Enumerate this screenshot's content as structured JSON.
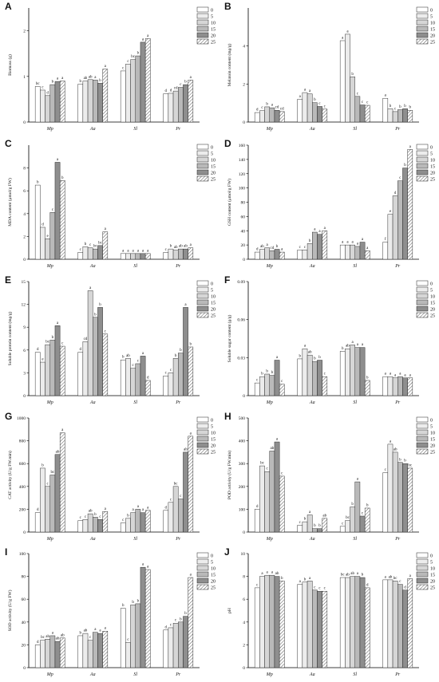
{
  "legend_levels": [
    "0",
    "5",
    "10",
    "15",
    "20",
    "25"
  ],
  "series_fills": [
    "#ffffff",
    "#ececec",
    "#d6d6d6",
    "#b9b9b9",
    "#8e8e8e",
    "hatch"
  ],
  "chart_data": [
    {
      "label": "A",
      "type": "bar",
      "ylabel": "Biomass (g)",
      "ylim": [
        0,
        2.5
      ],
      "yticks": [
        0,
        1,
        2
      ],
      "categories": [
        "Mp",
        "Aa",
        "Sl",
        "Pr"
      ],
      "series": [
        {
          "name": "0",
          "values": [
            0.78,
            0.83,
            1.12,
            0.62
          ],
          "sig": [
            "bc",
            "b",
            "c",
            "d"
          ]
        },
        {
          "name": "5",
          "values": [
            0.7,
            0.9,
            1.27,
            0.63
          ],
          "sig": [
            "c",
            "ab",
            "c",
            "d"
          ]
        },
        {
          "name": "10",
          "values": [
            0.58,
            0.93,
            1.37,
            0.68
          ],
          "sig": [
            "d",
            "ab",
            "bc",
            "cd"
          ]
        },
        {
          "name": "15",
          "values": [
            0.82,
            0.92,
            1.45,
            0.76
          ],
          "sig": [
            "b",
            "a",
            "b",
            "c"
          ]
        },
        {
          "name": "20",
          "values": [
            0.89,
            0.85,
            1.75,
            0.82
          ],
          "sig": [
            "a",
            "b",
            "a",
            "b"
          ]
        },
        {
          "name": "25",
          "values": [
            0.9,
            1.16,
            1.83,
            0.92
          ],
          "sig": [
            "a",
            "a",
            "a",
            "a"
          ]
        }
      ]
    },
    {
      "label": "B",
      "type": "bar",
      "ylabel": "Melatoin content (mg/g)",
      "ylim": [
        0,
        6
      ],
      "yticks": [
        0,
        2,
        4
      ],
      "categories": [
        "Mp",
        "Aa",
        "Sl",
        "Pr"
      ],
      "series": [
        {
          "name": "0",
          "values": [
            0.5,
            1.2,
            4.28,
            1.25
          ],
          "sig": [
            "d",
            "a",
            "a",
            "a"
          ]
        },
        {
          "name": "5",
          "values": [
            0.6,
            1.55,
            4.62,
            0.7
          ],
          "sig": [
            "c",
            "a",
            "a",
            "b"
          ]
        },
        {
          "name": "10",
          "values": [
            0.8,
            1.48,
            2.38,
            0.55
          ],
          "sig": [
            "b",
            "a",
            "b",
            "c"
          ]
        },
        {
          "name": "15",
          "values": [
            0.75,
            1.02,
            1.35,
            0.65
          ],
          "sig": [
            "a",
            "b",
            "c",
            "b"
          ]
        },
        {
          "name": "20",
          "values": [
            0.62,
            0.82,
            0.9,
            0.7
          ],
          "sig": [
            "cd",
            "c",
            "c",
            "b"
          ]
        },
        {
          "name": "25",
          "values": [
            0.55,
            0.68,
            0.88,
            0.62
          ],
          "sig": [
            "cd",
            "c",
            "c",
            "b"
          ]
        }
      ]
    },
    {
      "label": "C",
      "type": "bar",
      "ylabel": "MDA content (μmol/g FW)",
      "ylim": [
        0,
        10
      ],
      "yticks": [
        0,
        2,
        4,
        6,
        8
      ],
      "categories": [
        "Mp",
        "Aa",
        "Sl",
        "Pr"
      ],
      "series": [
        {
          "name": "0",
          "values": [
            6.5,
            0.6,
            0.5,
            0.6
          ],
          "sig": [
            "b",
            "c",
            "a",
            "c"
          ]
        },
        {
          "name": "5",
          "values": [
            2.8,
            1.1,
            0.5,
            0.9
          ],
          "sig": [
            "d",
            "b",
            "a",
            "b"
          ]
        },
        {
          "name": "10",
          "values": [
            1.8,
            1.0,
            0.5,
            0.8
          ],
          "sig": [
            "e",
            "c",
            "a",
            "ab"
          ]
        },
        {
          "name": "15",
          "values": [
            4.1,
            0.9,
            0.5,
            0.9
          ],
          "sig": [
            "c",
            "bc",
            "a",
            "ab"
          ]
        },
        {
          "name": "20",
          "values": [
            8.5,
            1.2,
            0.5,
            0.9
          ],
          "sig": [
            "a",
            "bc",
            "a",
            "ab"
          ]
        },
        {
          "name": "25",
          "values": [
            6.9,
            2.4,
            0.5,
            1.0
          ],
          "sig": [
            "b",
            "a",
            "a",
            "a"
          ]
        }
      ]
    },
    {
      "label": "D",
      "type": "bar",
      "ylabel": "GSH content (μmol/g FW)",
      "ylim": [
        0,
        160
      ],
      "yticks": [
        0,
        20,
        40,
        60,
        80,
        100,
        120,
        140,
        160
      ],
      "categories": [
        "Mp",
        "Aa",
        "Sl",
        "Pr"
      ],
      "series": [
        {
          "name": "0",
          "values": [
            10,
            13,
            20,
            24
          ],
          "sig": [
            "d",
            "c",
            "a",
            "f"
          ]
        },
        {
          "name": "5",
          "values": [
            14,
            13,
            20,
            63
          ],
          "sig": [
            "ab",
            "c",
            "a",
            "e"
          ]
        },
        {
          "name": "10",
          "values": [
            16,
            22,
            20,
            89
          ],
          "sig": [
            "a",
            "b",
            "a",
            "d"
          ]
        },
        {
          "name": "15",
          "values": [
            12,
            38,
            18,
            110
          ],
          "sig": [
            "cd",
            "a",
            "a",
            "c"
          ]
        },
        {
          "name": "20",
          "values": [
            14,
            35,
            24,
            128
          ],
          "sig": [
            "b",
            "a",
            "a",
            "b"
          ]
        },
        {
          "name": "25",
          "values": [
            10,
            40,
            12,
            154
          ],
          "sig": [
            "a",
            "a",
            "a",
            "a"
          ]
        }
      ]
    },
    {
      "label": "E",
      "type": "bar",
      "ylabel": "Soluble protein content (mg/g)",
      "ylim": [
        0,
        15
      ],
      "yticks": [
        0,
        3,
        6,
        9,
        12,
        15
      ],
      "categories": [
        "Mp",
        "Aa",
        "Sl",
        "Pr"
      ],
      "series": [
        {
          "name": "0",
          "values": [
            5.7,
            5.7,
            4.7,
            2.6
          ],
          "sig": [
            "d",
            "d",
            "b",
            "c"
          ]
        },
        {
          "name": "5",
          "values": [
            4.4,
            7.1,
            4.9,
            3.0
          ],
          "sig": [
            "e",
            "cd",
            "ab",
            "c"
          ]
        },
        {
          "name": "10",
          "values": [
            6.7,
            13.8,
            3.6,
            4.9
          ],
          "sig": [
            "bc",
            "a",
            "c",
            "b"
          ]
        },
        {
          "name": "15",
          "values": [
            7.3,
            10.3,
            4.2,
            5.6
          ],
          "sig": [
            "b",
            "b",
            "c",
            "b"
          ]
        },
        {
          "name": "20",
          "values": [
            9.2,
            11.6,
            5.2,
            11.6
          ],
          "sig": [
            "a",
            "b",
            "a",
            "a"
          ]
        },
        {
          "name": "25",
          "values": [
            6.5,
            8.1,
            2.0,
            6.4
          ],
          "sig": [
            "c",
            "c",
            "d",
            "b"
          ]
        }
      ]
    },
    {
      "label": "F",
      "type": "bar",
      "ylabel": "Soluble sugar content (g/g)",
      "ylim": [
        0,
        0.09
      ],
      "yticks": [
        0,
        0.03,
        0.06,
        0.09
      ],
      "categories": [
        "Mp",
        "Aa",
        "Sl",
        "Pr"
      ],
      "series": [
        {
          "name": "0",
          "values": [
            0.01,
            0.029,
            0.035,
            0.015
          ],
          "sig": [
            "c",
            "b",
            "b",
            "a"
          ]
        },
        {
          "name": "5",
          "values": [
            0.015,
            0.037,
            0.037,
            0.015
          ],
          "sig": [
            "b",
            "a",
            "ab",
            "a"
          ]
        },
        {
          "name": "10",
          "values": [
            0.017,
            0.032,
            0.04,
            0.014
          ],
          "sig": [
            "b",
            "ab",
            "a",
            "a"
          ]
        },
        {
          "name": "15",
          "values": [
            0.016,
            0.027,
            0.038,
            0.015
          ],
          "sig": [
            "b",
            "b",
            "a",
            "a"
          ]
        },
        {
          "name": "20",
          "values": [
            0.028,
            0.028,
            0.038,
            0.014
          ],
          "sig": [
            "a",
            "b",
            "a",
            "a"
          ]
        },
        {
          "name": "25",
          "values": [
            0.009,
            0.015,
            0.012,
            0.014
          ],
          "sig": [
            "c",
            "c",
            "b",
            "a"
          ]
        }
      ]
    },
    {
      "label": "G",
      "type": "bar",
      "ylabel": "CAT activity (U/g FW.min)",
      "ylim": [
        0,
        1000
      ],
      "yticks": [
        0,
        200,
        400,
        600,
        800,
        1000
      ],
      "categories": [
        "Mp",
        "Aa",
        "Sl",
        "Pr"
      ],
      "series": [
        {
          "name": "0",
          "values": [
            170,
            100,
            80,
            190
          ],
          "sig": [
            "d",
            "c",
            "c",
            "d"
          ]
        },
        {
          "name": "5",
          "values": [
            560,
            110,
            120,
            260
          ],
          "sig": [
            "b",
            "c",
            "b",
            "c"
          ]
        },
        {
          "name": "10",
          "values": [
            400,
            160,
            170,
            400
          ],
          "sig": [
            "c",
            "ab",
            "a",
            "bc"
          ]
        },
        {
          "name": "15",
          "values": [
            500,
            130,
            200,
            290
          ],
          "sig": [
            "bc",
            "b",
            "a",
            "c"
          ]
        },
        {
          "name": "20",
          "values": [
            680,
            110,
            170,
            700
          ],
          "sig": [
            "ab",
            "c",
            "a",
            "ab"
          ]
        },
        {
          "name": "25",
          "values": [
            870,
            180,
            190,
            840
          ],
          "sig": [
            "a",
            "a",
            "a",
            "a"
          ]
        }
      ]
    },
    {
      "label": "H",
      "type": "bar",
      "ylabel": "POD activity (U/g FW.min)",
      "ylim": [
        0,
        500
      ],
      "yticks": [
        0,
        100,
        200,
        300,
        400,
        500
      ],
      "categories": [
        "Mp",
        "Aa",
        "Sl",
        "Pr"
      ],
      "series": [
        {
          "name": "0",
          "values": [
            100,
            30,
            25,
            260
          ],
          "sig": [
            "d",
            "c",
            "c",
            "c"
          ]
        },
        {
          "name": "5",
          "values": [
            290,
            45,
            50,
            385
          ],
          "sig": [
            "bc",
            "b",
            "bc",
            "a"
          ]
        },
        {
          "name": "10",
          "values": [
            265,
            75,
            110,
            350
          ],
          "sig": [
            "c",
            "a",
            "b",
            "ab"
          ]
        },
        {
          "name": "15",
          "values": [
            355,
            15,
            220,
            305
          ],
          "sig": [
            "ab",
            "b",
            "a",
            "b"
          ]
        },
        {
          "name": "20",
          "values": [
            395,
            15,
            70,
            300
          ],
          "sig": [
            "a",
            "b",
            "c",
            "b"
          ]
        },
        {
          "name": "25",
          "values": [
            245,
            60,
            105,
            280
          ],
          "sig": [
            "c",
            "ab",
            "b",
            "bc"
          ]
        }
      ]
    },
    {
      "label": "I",
      "type": "bar",
      "ylabel": "SOD activity (U/g FW)",
      "ylim": [
        0,
        100
      ],
      "yticks": [
        0,
        20,
        40,
        60,
        80,
        100
      ],
      "categories": [
        "Mp",
        "Aa",
        "Sl",
        "Pr"
      ],
      "series": [
        {
          "name": "0",
          "values": [
            20,
            28,
            52,
            33
          ],
          "sig": [
            "d",
            "b",
            "b",
            "d"
          ]
        },
        {
          "name": "5",
          "values": [
            24,
            30,
            22,
            35
          ],
          "sig": [
            "bc",
            "ab",
            "c",
            "c"
          ]
        },
        {
          "name": "10",
          "values": [
            25,
            24,
            55,
            39
          ],
          "sig": [
            "ab",
            "c",
            "b",
            "c"
          ]
        },
        {
          "name": "15",
          "values": [
            28,
            31,
            56,
            40
          ],
          "sig": [
            "a",
            "a",
            "b",
            "b"
          ]
        },
        {
          "name": "20",
          "values": [
            23,
            30,
            88,
            45
          ],
          "sig": [
            "ab",
            "a",
            "a",
            "b"
          ]
        },
        {
          "name": "25",
          "values": [
            26,
            32,
            86,
            79
          ],
          "sig": [
            "ab",
            "a",
            "a",
            "a"
          ]
        }
      ]
    },
    {
      "label": "J",
      "type": "bar",
      "ylabel": "pH",
      "ylim": [
        0,
        10
      ],
      "yticks": [
        0,
        2,
        4,
        6,
        8,
        10
      ],
      "categories": [
        "Mp",
        "Aa",
        "Sl",
        "Pr"
      ],
      "series": [
        {
          "name": "0",
          "values": [
            7.0,
            7.3,
            7.9,
            7.7
          ],
          "sig": [
            "c",
            "a",
            "bc",
            "a"
          ]
        },
        {
          "name": "5",
          "values": [
            8.0,
            7.5,
            7.9,
            7.7
          ],
          "sig": [
            "a",
            "b",
            "ab",
            "ab"
          ]
        },
        {
          "name": "10",
          "values": [
            8.1,
            7.6,
            8.0,
            7.6
          ],
          "sig": [
            "a",
            "a",
            "ab",
            "bc"
          ]
        },
        {
          "name": "15",
          "values": [
            8.1,
            6.8,
            8.0,
            7.3
          ],
          "sig": [
            "a",
            "c",
            "a",
            "c"
          ]
        },
        {
          "name": "20",
          "values": [
            8.0,
            6.7,
            7.9,
            6.8
          ],
          "sig": [
            "ab",
            "c",
            "b",
            "d"
          ]
        },
        {
          "name": "25",
          "values": [
            7.6,
            6.7,
            7.0,
            7.8
          ],
          "sig": [
            "b",
            "c",
            "d",
            "a"
          ]
        }
      ]
    }
  ]
}
